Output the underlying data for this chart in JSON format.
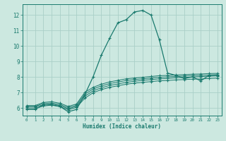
{
  "xlabel": "Humidex (Indice chaleur)",
  "bg_color": "#cce8e0",
  "grid_color": "#aacfc8",
  "line_color": "#1a7a6e",
  "spine_color": "#1a7a6e",
  "xlim": [
    -0.5,
    23.5
  ],
  "ylim": [
    5.5,
    12.7
  ],
  "yticks": [
    6,
    7,
    8,
    9,
    10,
    11,
    12
  ],
  "xticks": [
    0,
    1,
    2,
    3,
    4,
    5,
    6,
    7,
    8,
    9,
    10,
    11,
    12,
    13,
    14,
    15,
    16,
    17,
    18,
    19,
    20,
    21,
    22,
    23
  ],
  "line1_x": [
    0,
    1,
    2,
    3,
    4,
    5,
    6,
    7,
    8,
    9,
    10,
    11,
    12,
    13,
    14,
    15,
    16,
    17,
    18,
    19,
    20,
    21,
    22,
    23
  ],
  "line1_y": [
    5.9,
    5.9,
    6.2,
    6.2,
    6.1,
    5.75,
    5.9,
    6.85,
    8.0,
    9.4,
    10.5,
    11.5,
    11.7,
    12.2,
    12.3,
    12.0,
    10.4,
    8.25,
    8.1,
    7.9,
    8.0,
    7.75,
    8.1,
    8.1
  ],
  "line2_x": [
    0,
    1,
    2,
    3,
    4,
    5,
    6,
    7,
    8,
    9,
    10,
    11,
    12,
    13,
    14,
    15,
    16,
    17,
    18,
    19,
    20,
    21,
    22,
    23
  ],
  "line2_y": [
    6.05,
    6.05,
    6.2,
    6.25,
    6.15,
    5.95,
    6.1,
    6.75,
    7.1,
    7.3,
    7.45,
    7.55,
    7.65,
    7.72,
    7.78,
    7.83,
    7.88,
    7.9,
    7.95,
    7.97,
    8.0,
    8.02,
    8.05,
    8.07
  ],
  "line3_x": [
    0,
    1,
    2,
    3,
    4,
    5,
    6,
    7,
    8,
    9,
    10,
    11,
    12,
    13,
    14,
    15,
    16,
    17,
    18,
    19,
    20,
    21,
    22,
    23
  ],
  "line3_y": [
    6.1,
    6.1,
    6.28,
    6.32,
    6.22,
    6.02,
    6.17,
    6.88,
    7.22,
    7.42,
    7.57,
    7.67,
    7.77,
    7.83,
    7.88,
    7.93,
    7.98,
    8.0,
    8.04,
    8.06,
    8.09,
    8.1,
    8.13,
    8.15
  ],
  "line4_x": [
    0,
    1,
    2,
    3,
    4,
    5,
    6,
    7,
    8,
    9,
    10,
    11,
    12,
    13,
    14,
    15,
    16,
    17,
    18,
    19,
    20,
    21,
    22,
    23
  ],
  "line4_y": [
    6.15,
    6.15,
    6.35,
    6.4,
    6.3,
    6.1,
    6.25,
    7.0,
    7.33,
    7.53,
    7.68,
    7.78,
    7.88,
    7.93,
    7.98,
    8.03,
    8.08,
    8.1,
    8.13,
    8.15,
    8.18,
    8.19,
    8.22,
    8.23
  ],
  "line5_x": [
    0,
    1,
    2,
    3,
    4,
    5,
    6,
    7,
    8,
    9,
    10,
    11,
    12,
    13,
    14,
    15,
    16,
    17,
    18,
    19,
    20,
    21,
    22,
    23
  ],
  "line5_y": [
    5.95,
    5.95,
    6.12,
    6.18,
    6.08,
    5.88,
    6.03,
    6.62,
    6.98,
    7.18,
    7.33,
    7.43,
    7.53,
    7.6,
    7.65,
    7.7,
    7.75,
    7.77,
    7.81,
    7.83,
    7.86,
    7.87,
    7.9,
    7.92
  ]
}
